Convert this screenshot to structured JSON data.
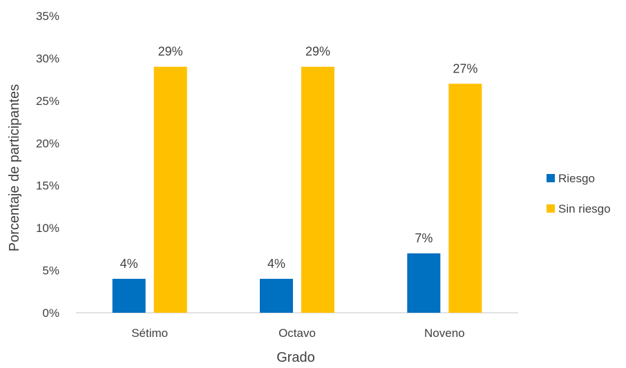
{
  "chart_data": {
    "type": "bar",
    "title": "",
    "xlabel": "Grado",
    "ylabel": "Porcentaje de participantes",
    "categories": [
      "Sétimo",
      "Octavo",
      "Noveno"
    ],
    "series": [
      {
        "name": "Riesgo",
        "values": [
          4,
          4,
          7
        ],
        "labels": [
          "4%",
          "4%",
          "7%"
        ],
        "color": "#0070C0"
      },
      {
        "name": "Sin riesgo",
        "values": [
          29,
          29,
          27
        ],
        "labels": [
          "29%",
          "29%",
          "27%"
        ],
        "color": "#FFC000"
      }
    ],
    "ylim": [
      0,
      35
    ],
    "yticks": [
      0,
      5,
      10,
      15,
      20,
      25,
      30,
      35
    ],
    "ytick_labels": [
      "0%",
      "5%",
      "10%",
      "15%",
      "20%",
      "25%",
      "30%",
      "35%"
    ],
    "grid": false,
    "legend_position": "right"
  }
}
